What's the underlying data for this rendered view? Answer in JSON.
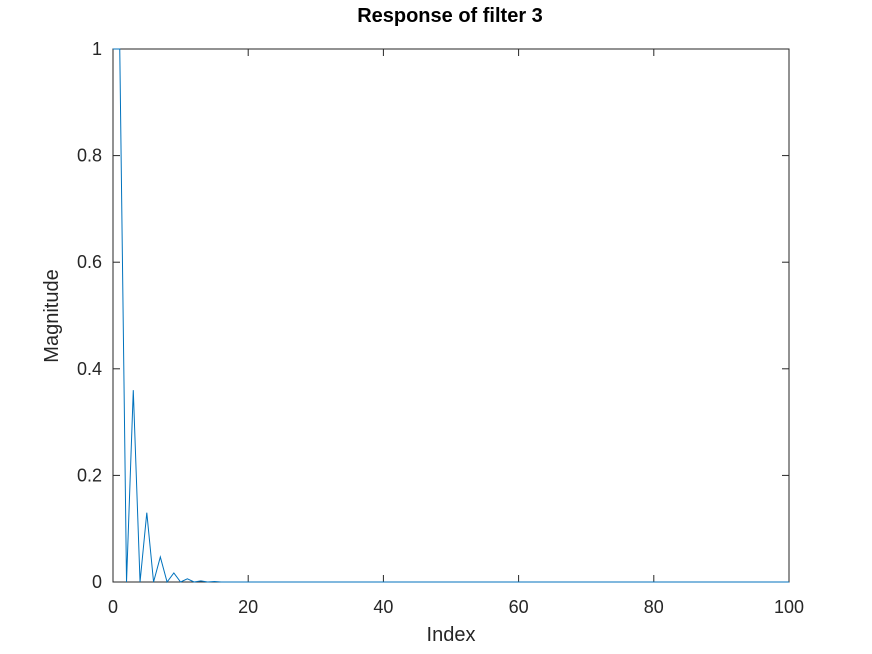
{
  "chart_data": {
    "type": "line",
    "title": "Response of filter 3",
    "xlabel": "Index",
    "ylabel": "Magnitude",
    "xlim": [
      0,
      100
    ],
    "ylim": [
      0,
      1
    ],
    "xticks": [
      "0",
      "20",
      "40",
      "60",
      "80",
      "100"
    ],
    "yticks": [
      "0",
      "0.2",
      "0.4",
      "0.6",
      "0.8",
      "1"
    ],
    "grid": false,
    "legend": "none",
    "series_color": "#0072bd",
    "series": [
      {
        "x": [
          0,
          1,
          2,
          3,
          4,
          5,
          6,
          7,
          8,
          9,
          10,
          11,
          12,
          13,
          14,
          15,
          16,
          17,
          18,
          19,
          20,
          25,
          30,
          40,
          50,
          60,
          70,
          80,
          90,
          100
        ],
        "values": [
          1.0,
          1.0,
          0.0,
          0.36,
          0.0,
          0.13,
          0.0,
          0.047,
          0.0,
          0.017,
          0.0,
          0.006,
          0.0,
          0.002,
          0.0,
          0.001,
          0.0,
          0.0,
          0.0,
          0.0,
          0.0,
          0.0,
          0.0,
          0.0,
          0.0,
          0.0,
          0.0,
          0.0,
          0.0,
          0.0
        ]
      }
    ]
  }
}
